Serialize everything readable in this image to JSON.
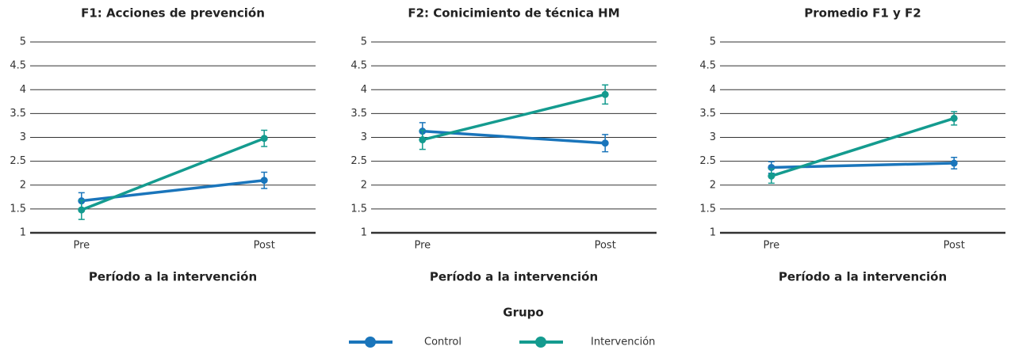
{
  "chart_data": [
    {
      "type": "line",
      "title": "F1: Acciones de prevención",
      "xlabel": "Período a la intervención",
      "categories": [
        "Pre",
        "Post"
      ],
      "ylim": [
        1,
        5
      ],
      "yticks": [
        1,
        1.5,
        2,
        2.5,
        3,
        3.5,
        4,
        4.5,
        5
      ],
      "grid": true,
      "series": [
        {
          "name": "Control",
          "color": "#1a75bb",
          "values": [
            1.67,
            2.1
          ],
          "errors": [
            0.17,
            0.17
          ]
        },
        {
          "name": "Intervención",
          "color": "#149b8f",
          "values": [
            1.48,
            2.98
          ],
          "errors": [
            0.2,
            0.17
          ]
        }
      ]
    },
    {
      "type": "line",
      "title": "F2: Conicimiento de técnica HM",
      "xlabel": "Período a la intervención",
      "categories": [
        "Pre",
        "Post"
      ],
      "ylim": [
        1,
        5
      ],
      "yticks": [
        1,
        1.5,
        2,
        2.5,
        3,
        3.5,
        4,
        4.5,
        5
      ],
      "grid": true,
      "series": [
        {
          "name": "Control",
          "color": "#1a75bb",
          "values": [
            3.13,
            2.88
          ],
          "errors": [
            0.18,
            0.18
          ]
        },
        {
          "name": "Intervención",
          "color": "#149b8f",
          "values": [
            2.95,
            3.9
          ],
          "errors": [
            0.2,
            0.2
          ]
        }
      ]
    },
    {
      "type": "line",
      "title": "Promedio F1 y F2",
      "xlabel": "Período a la intervención",
      "categories": [
        "Pre",
        "Post"
      ],
      "ylim": [
        1,
        5
      ],
      "yticks": [
        1,
        1.5,
        2,
        2.5,
        3,
        3.5,
        4,
        4.5,
        5
      ],
      "grid": true,
      "series": [
        {
          "name": "Control",
          "color": "#1a75bb",
          "values": [
            2.37,
            2.46
          ],
          "errors": [
            0.12,
            0.12
          ]
        },
        {
          "name": "Intervención",
          "color": "#149b8f",
          "values": [
            2.19,
            3.4
          ],
          "errors": [
            0.15,
            0.14
          ]
        }
      ]
    }
  ],
  "legend_title": "Grupo"
}
